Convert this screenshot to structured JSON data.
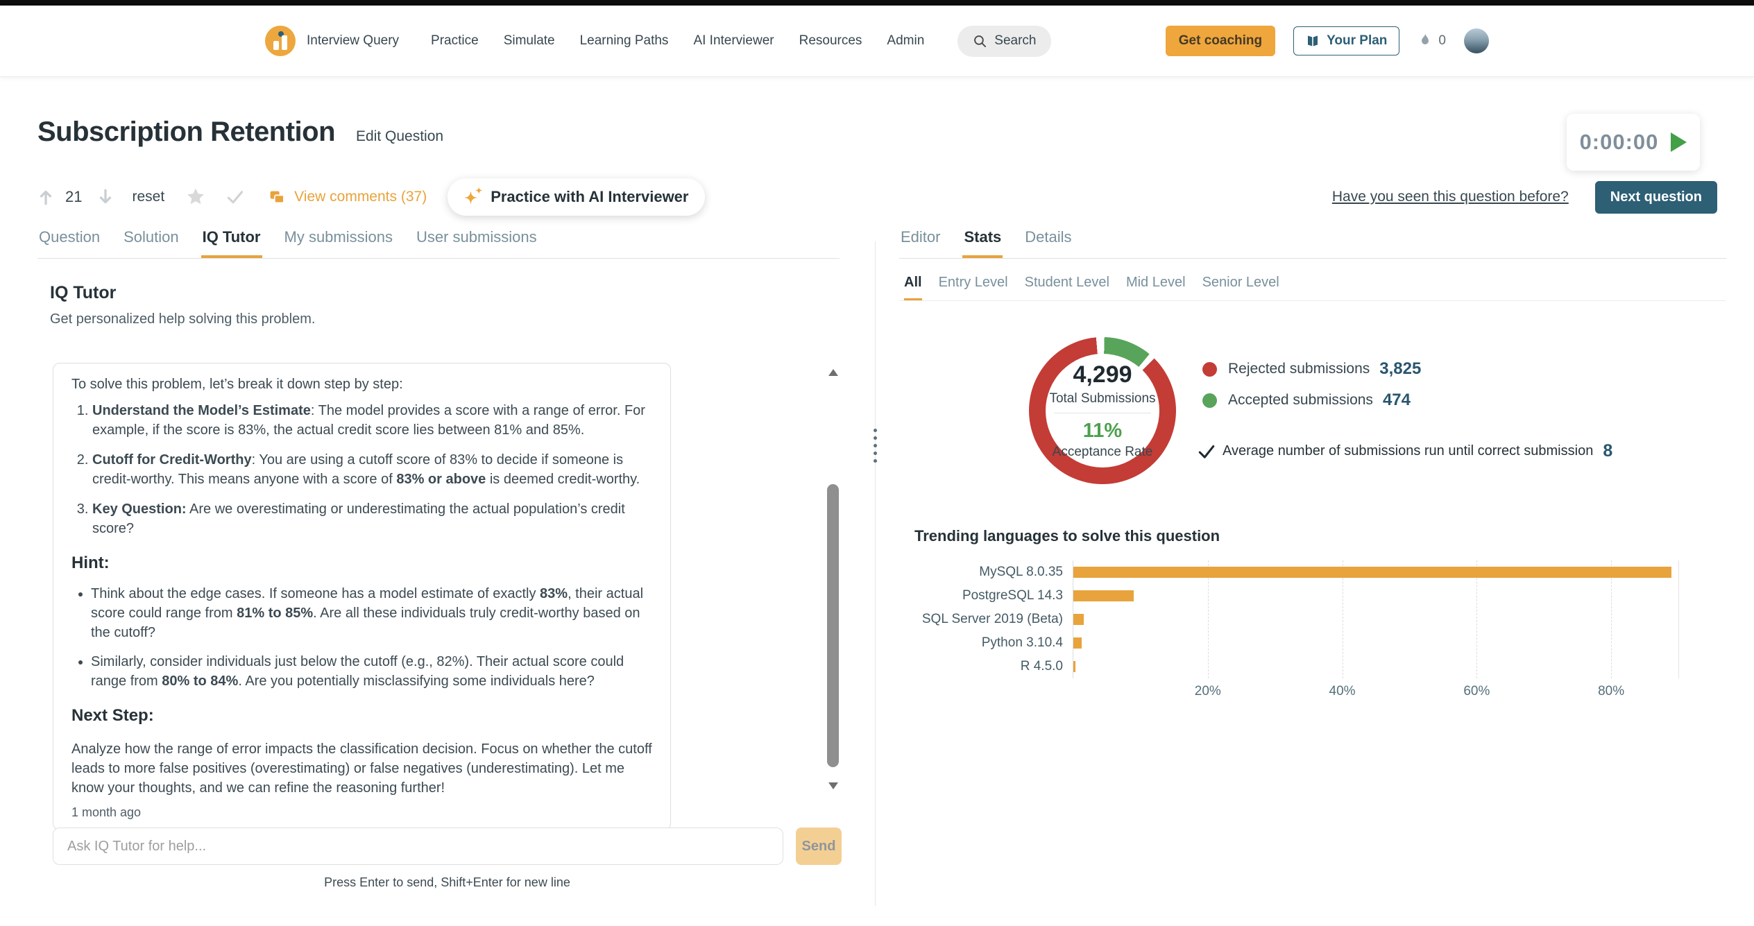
{
  "nav": {
    "brand": "Interview Query",
    "links": [
      "Practice",
      "Simulate",
      "Learning Paths",
      "AI Interviewer",
      "Resources",
      "Admin"
    ],
    "search": "Search",
    "get_coaching": "Get coaching",
    "your_plan": "Your Plan",
    "streak": "0"
  },
  "question": {
    "title": "Subscription Retention",
    "edit": "Edit Question",
    "timer": "0:00:00",
    "votes": "21",
    "reset": "reset",
    "comments": "View comments (37)",
    "ai_interviewer": "Practice with AI Interviewer",
    "seen_before": "Have you seen this question before?",
    "next_question": "Next question"
  },
  "tabs": {
    "left": [
      "Question",
      "Solution",
      "IQ Tutor",
      "My submissions",
      "User submissions"
    ],
    "left_active": "IQ Tutor",
    "right": [
      "Editor",
      "Stats",
      "Details"
    ],
    "right_active": "Stats",
    "levels": [
      "All",
      "Entry Level",
      "Student Level",
      "Mid Level",
      "Senior Level"
    ],
    "levels_active": "All"
  },
  "tutor": {
    "heading": "IQ Tutor",
    "subheading": "Get personalized help solving this problem.",
    "message": {
      "intro": "To solve this problem, let’s break it down step by step:",
      "steps": [
        [
          {
            "t": "Understand the Model’s Estimate",
            "b": true
          },
          {
            "t": ": The model provides a score with a range of error. For example, if the score is 83%, the actual credit score lies between 81% and 85%."
          }
        ],
        [
          {
            "t": "Cutoff for Credit-Worthy",
            "b": true
          },
          {
            "t": ": You are using a cutoff score of 83% to decide if someone is credit-worthy. This means anyone with a score of "
          },
          {
            "t": "83% or above",
            "b": true
          },
          {
            "t": " is deemed credit-worthy."
          }
        ],
        [
          {
            "t": "Key Question:",
            "b": true
          },
          {
            "t": " Are we overestimating or underestimating the actual population’s credit score?"
          }
        ]
      ],
      "hint_heading": "Hint:",
      "hints": [
        [
          {
            "t": "Think about the edge cases. If someone has a model estimate of exactly "
          },
          {
            "t": "83%",
            "b": true
          },
          {
            "t": ", their actual score could range from "
          },
          {
            "t": "81% to 85%",
            "b": true
          },
          {
            "t": ". Are all these individuals truly credit-worthy based on the cutoff?"
          }
        ],
        [
          {
            "t": "Similarly, consider individuals just below the cutoff (e.g., 82%). Their actual score could range from "
          },
          {
            "t": "80% to 84%",
            "b": true
          },
          {
            "t": ". Are you potentially misclassifying some individuals here?"
          }
        ]
      ],
      "next_step_heading": "Next Step:",
      "next_step": "Analyze how the range of error impacts the classification decision. Focus on whether the cutoff leads to more false positives (overestimating) or false negatives (underestimating). Let me know your thoughts, and we can refine the reasoning further!",
      "timestamp": "1 month ago"
    },
    "input_placeholder": "Ask IQ Tutor for help...",
    "send": "Send",
    "input_hint": "Press Enter to send, Shift+Enter for new line"
  },
  "stats": {
    "total": "4,299",
    "total_label": "Total Submissions",
    "rate": "11%",
    "rate_label": "Acceptance Rate",
    "rejected_label": "Rejected submissions",
    "rejected_value": "3,825",
    "accepted_label": "Accepted submissions",
    "accepted_value": "474",
    "avg_label": "Average number of submissions run until correct submission",
    "avg_value": "8",
    "chart_title": "Trending languages to solve this question"
  },
  "colors": {
    "accent_orange": "#e8a33c",
    "teal": "#2d5f75",
    "red": "#c33c36",
    "green": "#58a45b",
    "value_blue": "#29566f"
  },
  "chart_data": [
    {
      "type": "pie",
      "subtype": "donut",
      "title": "Submission outcomes",
      "slices": [
        {
          "label": "Rejected submissions",
          "value": 3825,
          "color": "#c33c36"
        },
        {
          "label": "Accepted submissions",
          "value": 474,
          "color": "#58a45b"
        }
      ],
      "center_total": 4299,
      "acceptance_rate_pct": 11
    },
    {
      "type": "bar",
      "orientation": "horizontal",
      "title": "Trending languages to solve this question",
      "categories": [
        "MySQL 8.0.35",
        "PostgreSQL 14.3",
        "SQL Server 2019 (Beta)",
        "Python 3.10.4",
        "R 4.5.0"
      ],
      "values": [
        89,
        9,
        1.5,
        1.2,
        0.3
      ],
      "unit": "%",
      "xticks": [
        "20%",
        "40%",
        "60%",
        "80%"
      ],
      "xtick_values": [
        20,
        40,
        60,
        80
      ],
      "xmax": 90,
      "bar_color": "#e8a33c",
      "grid": "dashed-vertical"
    }
  ]
}
